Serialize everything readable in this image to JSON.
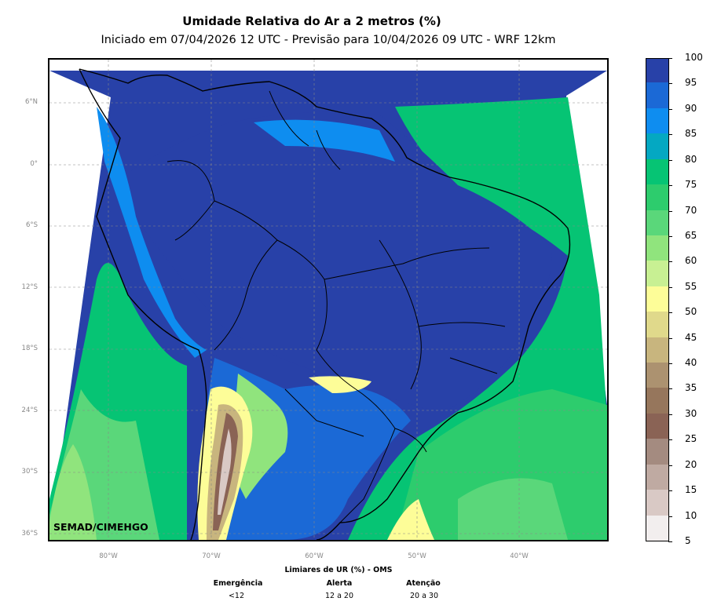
{
  "title": "Umidade Relativa do Ar a 2 metros (%)",
  "subtitle": "Iniciado em 07/04/2026 12 UTC - Previsão para 10/04/2026 09 UTC - WRF 12km",
  "credit": "SEMAD/CIMEHGO",
  "lat_labels": [
    "6°N",
    "0°",
    "6°S",
    "12°S",
    "18°S",
    "24°S",
    "30°S",
    "36°S"
  ],
  "lon_labels": [
    "80°W",
    "70°W",
    "60°W",
    "50°W",
    "40°W"
  ],
  "colorbar": {
    "ticks": [
      "5",
      "10",
      "15",
      "20",
      "25",
      "30",
      "35",
      "40",
      "45",
      "50",
      "55",
      "60",
      "65",
      "70",
      "75",
      "80",
      "85",
      "90",
      "95",
      "100"
    ],
    "colors": [
      "#f2eeee",
      "#d9c9c5",
      "#bfaaa2",
      "#a48b80",
      "#8a6355",
      "#96765c",
      "#ac9270",
      "#c8b57e",
      "#e0d98b",
      "#fdfd98",
      "#c8f093",
      "#90e47d",
      "#5ad77a",
      "#2dcc6d",
      "#06c474",
      "#04a8c2",
      "#0e8df0",
      "#1b69d6",
      "#2841a8"
    ]
  },
  "legend": {
    "title": "Limiares de UR (%) - OMS",
    "levels": [
      {
        "name": "Emergência",
        "range": "<12"
      },
      {
        "name": "Alerta",
        "range": "12 a 20"
      },
      {
        "name": "Atenção",
        "range": "20 a 30"
      }
    ]
  }
}
